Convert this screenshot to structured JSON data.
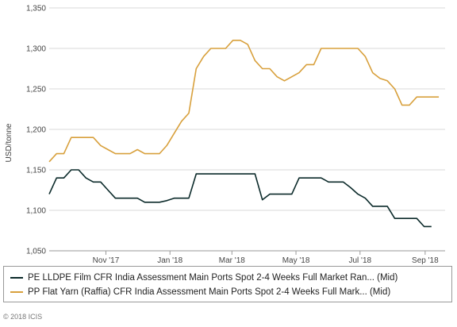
{
  "chart_data": {
    "type": "line",
    "title": "",
    "ylabel": "USD/tonne",
    "ylim": [
      1050,
      1350
    ],
    "yticks": [
      1050,
      1100,
      1150,
      1200,
      1250,
      1300,
      1350
    ],
    "ytick_labels": [
      "1,050",
      "1,100",
      "1,150",
      "1,200",
      "1,250",
      "1,300",
      "1,350"
    ],
    "xlim": [
      "2017-09-08",
      "2018-09-20"
    ],
    "xticks": [
      {
        "date": "2017-11-01",
        "label": "Nov '17"
      },
      {
        "date": "2018-01-01",
        "label": "Jan '18"
      },
      {
        "date": "2018-03-01",
        "label": "Mar '18"
      },
      {
        "date": "2018-05-01",
        "label": "May '18"
      },
      {
        "date": "2018-07-01",
        "label": "Jul '18"
      },
      {
        "date": "2018-09-01",
        "label": "Sep '18"
      }
    ],
    "grid": "horizontal",
    "legend_position": "bottom",
    "series": [
      {
        "name": "PE LLDPE Film CFR India Assessment Main Ports Spot 2-4 Weeks Full Market Ran... (Mid)",
        "color": "#0b2a2a",
        "points": [
          [
            "2017-09-08",
            1120
          ],
          [
            "2017-09-15",
            1140
          ],
          [
            "2017-09-22",
            1140
          ],
          [
            "2017-09-29",
            1150
          ],
          [
            "2017-10-06",
            1150
          ],
          [
            "2017-10-13",
            1140
          ],
          [
            "2017-10-20",
            1135
          ],
          [
            "2017-10-27",
            1135
          ],
          [
            "2017-11-03",
            1125
          ],
          [
            "2017-11-10",
            1115
          ],
          [
            "2017-11-17",
            1115
          ],
          [
            "2017-11-24",
            1115
          ],
          [
            "2017-12-01",
            1115
          ],
          [
            "2017-12-08",
            1110
          ],
          [
            "2017-12-15",
            1110
          ],
          [
            "2017-12-22",
            1110
          ],
          [
            "2017-12-29",
            1112
          ],
          [
            "2018-01-05",
            1115
          ],
          [
            "2018-01-12",
            1115
          ],
          [
            "2018-01-19",
            1115
          ],
          [
            "2018-01-26",
            1145
          ],
          [
            "2018-02-02",
            1145
          ],
          [
            "2018-02-09",
            1145
          ],
          [
            "2018-02-16",
            1145
          ],
          [
            "2018-02-23",
            1145
          ],
          [
            "2018-03-02",
            1145
          ],
          [
            "2018-03-09",
            1145
          ],
          [
            "2018-03-16",
            1145
          ],
          [
            "2018-03-23",
            1145
          ],
          [
            "2018-03-30",
            1113
          ],
          [
            "2018-04-06",
            1120
          ],
          [
            "2018-04-13",
            1120
          ],
          [
            "2018-04-20",
            1120
          ],
          [
            "2018-04-27",
            1120
          ],
          [
            "2018-05-04",
            1140
          ],
          [
            "2018-05-11",
            1140
          ],
          [
            "2018-05-18",
            1140
          ],
          [
            "2018-05-25",
            1140
          ],
          [
            "2018-06-01",
            1135
          ],
          [
            "2018-06-08",
            1135
          ],
          [
            "2018-06-15",
            1135
          ],
          [
            "2018-06-22",
            1128
          ],
          [
            "2018-06-29",
            1120
          ],
          [
            "2018-07-06",
            1115
          ],
          [
            "2018-07-13",
            1105
          ],
          [
            "2018-07-20",
            1105
          ],
          [
            "2018-07-27",
            1105
          ],
          [
            "2018-08-03",
            1090
          ],
          [
            "2018-08-10",
            1090
          ],
          [
            "2018-08-17",
            1090
          ],
          [
            "2018-08-24",
            1090
          ],
          [
            "2018-08-31",
            1080
          ],
          [
            "2018-09-07",
            1080
          ]
        ]
      },
      {
        "name": "PP Flat Yarn (Raffia) CFR India Assessment Main Ports Spot 2-4 Weeks Full Mark... (Mid)",
        "color": "#d8a03c",
        "points": [
          [
            "2017-09-08",
            1160
          ],
          [
            "2017-09-15",
            1170
          ],
          [
            "2017-09-22",
            1170
          ],
          [
            "2017-09-29",
            1190
          ],
          [
            "2017-10-06",
            1190
          ],
          [
            "2017-10-13",
            1190
          ],
          [
            "2017-10-20",
            1190
          ],
          [
            "2017-10-27",
            1180
          ],
          [
            "2017-11-03",
            1175
          ],
          [
            "2017-11-10",
            1170
          ],
          [
            "2017-11-17",
            1170
          ],
          [
            "2017-11-24",
            1170
          ],
          [
            "2017-12-01",
            1175
          ],
          [
            "2017-12-08",
            1170
          ],
          [
            "2017-12-15",
            1170
          ],
          [
            "2017-12-22",
            1170
          ],
          [
            "2017-12-29",
            1180
          ],
          [
            "2018-01-05",
            1195
          ],
          [
            "2018-01-12",
            1210
          ],
          [
            "2018-01-19",
            1220
          ],
          [
            "2018-01-26",
            1275
          ],
          [
            "2018-02-02",
            1290
          ],
          [
            "2018-02-09",
            1300
          ],
          [
            "2018-02-16",
            1300
          ],
          [
            "2018-02-23",
            1300
          ],
          [
            "2018-03-02",
            1310
          ],
          [
            "2018-03-09",
            1310
          ],
          [
            "2018-03-16",
            1305
          ],
          [
            "2018-03-23",
            1285
          ],
          [
            "2018-03-30",
            1275
          ],
          [
            "2018-04-06",
            1275
          ],
          [
            "2018-04-13",
            1265
          ],
          [
            "2018-04-20",
            1260
          ],
          [
            "2018-04-27",
            1265
          ],
          [
            "2018-05-04",
            1270
          ],
          [
            "2018-05-11",
            1280
          ],
          [
            "2018-05-18",
            1280
          ],
          [
            "2018-05-25",
            1300
          ],
          [
            "2018-06-01",
            1300
          ],
          [
            "2018-06-08",
            1300
          ],
          [
            "2018-06-15",
            1300
          ],
          [
            "2018-06-22",
            1300
          ],
          [
            "2018-06-29",
            1300
          ],
          [
            "2018-07-06",
            1290
          ],
          [
            "2018-07-13",
            1270
          ],
          [
            "2018-07-20",
            1263
          ],
          [
            "2018-07-27",
            1260
          ],
          [
            "2018-08-03",
            1250
          ],
          [
            "2018-08-10",
            1230
          ],
          [
            "2018-08-17",
            1230
          ],
          [
            "2018-08-24",
            1240
          ],
          [
            "2018-08-31",
            1240
          ],
          [
            "2018-09-07",
            1240
          ],
          [
            "2018-09-14",
            1240
          ]
        ]
      }
    ]
  },
  "footer": {
    "copyright": "© 2018 ICIS"
  }
}
